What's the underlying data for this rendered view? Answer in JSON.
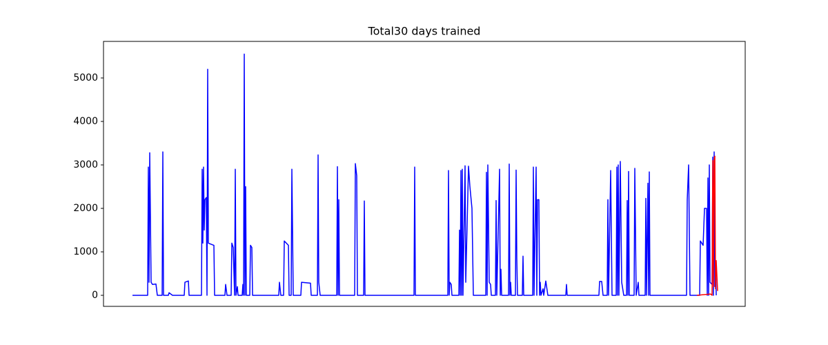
{
  "chart_data": {
    "type": "line",
    "title": "Total30 days trained",
    "xlim": [
      150,
      1080
    ],
    "ylim": [
      -254,
      5841
    ],
    "yticks": [
      0,
      1000,
      2000,
      3000,
      4000,
      5000
    ],
    "series": [
      {
        "color": "#0000ff",
        "x": [
          192,
          214,
          215,
          216,
          217,
          219,
          221,
          226,
          228,
          235,
          236,
          237,
          244,
          245,
          250,
          267,
          268,
          273,
          274,
          292,
          293,
          294,
          295,
          296,
          297,
          299,
          300,
          301,
          302,
          310,
          311,
          326,
          327,
          329,
          335,
          336,
          338,
          340,
          341,
          342,
          344,
          345,
          351,
          352,
          353,
          354,
          355,
          356,
          357,
          362,
          363,
          365,
          366,
          404,
          405,
          407,
          411,
          412,
          418,
          419,
          422,
          423,
          425,
          436,
          437,
          450,
          451,
          460,
          461,
          462,
          464,
          488,
          489,
          490,
          491,
          492,
          514,
          515,
          517,
          518,
          527,
          528,
          529,
          600,
          601,
          602,
          649,
          650,
          651,
          652,
          654,
          655,
          665,
          666,
          667,
          668,
          669,
          670,
          671,
          674,
          675,
          679,
          681,
          684,
          686,
          704,
          705,
          706,
          707,
          709,
          711,
          712,
          718,
          719,
          720,
          724,
          725,
          726,
          727,
          737,
          738,
          739,
          740,
          741,
          747,
          748,
          749,
          750,
          757,
          758,
          759,
          772,
          773,
          774,
          777,
          778,
          779,
          781,
          782,
          783,
          784,
          787,
          788,
          791,
          794,
          820,
          821,
          822,
          868,
          869,
          872,
          874,
          880,
          881,
          882,
          885,
          887,
          893,
          894,
          895,
          896,
          897,
          899,
          901,
          904,
          908,
          909,
          910,
          911,
          912,
          919,
          920,
          922,
          925,
          926,
          935,
          936,
          937,
          939,
          940,
          941,
          942,
          995,
          996,
          998,
          1000,
          1014,
          1015,
          1019,
          1021,
          1024,
          1025,
          1026,
          1027,
          1028,
          1029,
          1032,
          1033,
          1034,
          1035,
          1036,
          1037,
          1038
        ],
        "values": [
          0,
          0,
          2950,
          300,
          3280,
          300,
          250,
          260,
          0,
          0,
          3300,
          0,
          0,
          60,
          0,
          0,
          300,
          330,
          0,
          0,
          2900,
          1200,
          2950,
          1500,
          2200,
          2250,
          0,
          5200,
          1200,
          1150,
          0,
          0,
          250,
          0,
          0,
          1200,
          1100,
          0,
          2900,
          0,
          200,
          0,
          0,
          250,
          0,
          5550,
          0,
          2500,
          0,
          0,
          1150,
          1100,
          0,
          0,
          300,
          0,
          0,
          1250,
          1150,
          0,
          0,
          2900,
          0,
          0,
          300,
          280,
          0,
          0,
          3230,
          300,
          0,
          0,
          2960,
          0,
          2200,
          0,
          0,
          3030,
          2750,
          0,
          0,
          2170,
          0,
          0,
          2950,
          0,
          0,
          2870,
          0,
          300,
          250,
          0,
          0,
          1500,
          0,
          2870,
          0,
          2900,
          0,
          2980,
          300,
          2970,
          2500,
          2000,
          0,
          0,
          2830,
          0,
          3000,
          300,
          250,
          0,
          0,
          2180,
          0,
          2900,
          0,
          600,
          0,
          0,
          3020,
          0,
          300,
          0,
          0,
          2880,
          850,
          0,
          0,
          900,
          0,
          0,
          2950,
          0,
          2950,
          0,
          2200,
          2200,
          0,
          300,
          0,
          150,
          0,
          330,
          0,
          0,
          250,
          0,
          0,
          320,
          320,
          0,
          0,
          2200,
          0,
          2870,
          0,
          0,
          2950,
          0,
          3000,
          0,
          3080,
          300,
          0,
          0,
          2180,
          0,
          2850,
          0,
          0,
          2920,
          0,
          300,
          0,
          0,
          2230,
          0,
          2580,
          0,
          2840,
          0,
          0,
          2200,
          3000,
          0,
          0,
          1250,
          1150,
          2000,
          2000,
          0,
          2700,
          0,
          3000,
          300,
          250,
          3180,
          0,
          3300,
          200,
          800,
          0
        ]
      },
      {
        "color": "#ff0000",
        "x": [
          1010,
          1030,
          1032,
          1033,
          1034,
          1035,
          1036,
          1037,
          1038,
          1040
        ],
        "values": [
          0,
          30,
          0,
          3100,
          200,
          3150,
          3200,
          150,
          800,
          100
        ]
      }
    ]
  }
}
